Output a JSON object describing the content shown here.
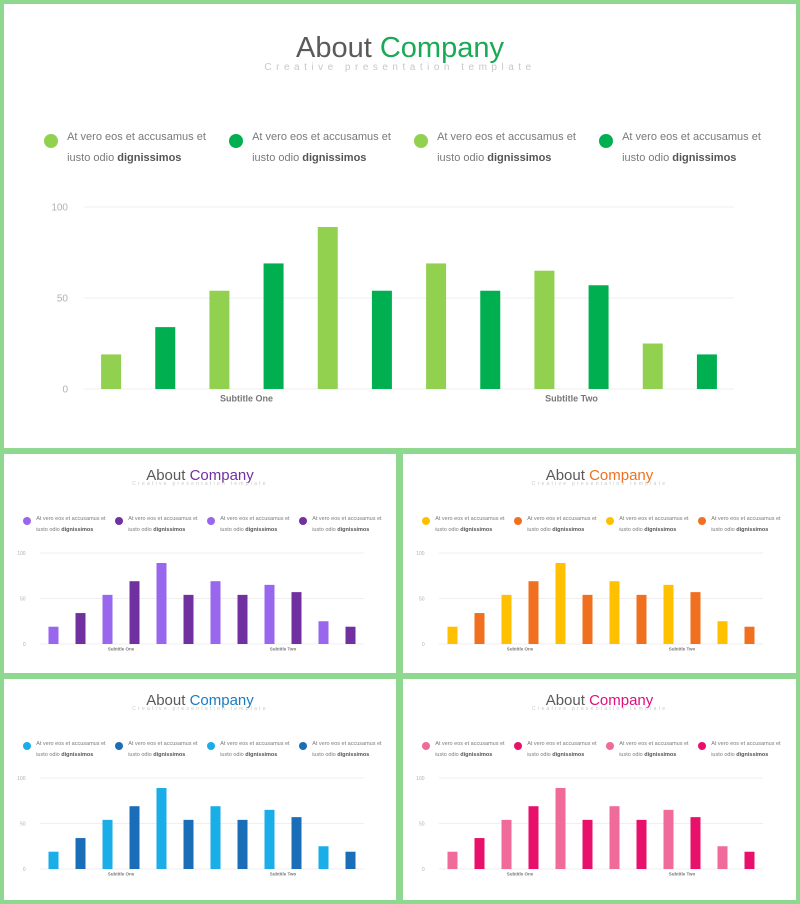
{
  "slides": [
    {
      "id": "main",
      "title_plain": "About ",
      "title_accent": "Company",
      "subtitle": "Creative presentation template",
      "accent_color": "#1aaa55",
      "colors": [
        "#92d050",
        "#00b050"
      ],
      "legend": [
        {
          "line1": "At vero eos et accusamus et",
          "line2_plain": "iusto odio ",
          "line2_bold": "dignissimos",
          "color": "#92d050"
        },
        {
          "line1": "At vero eos et accusamus et",
          "line2_plain": "iusto odio ",
          "line2_bold": "dignissimos",
          "color": "#00b050"
        },
        {
          "line1": "At vero eos et accusamus et",
          "line2_plain": "iusto odio ",
          "line2_bold": "dignissimos",
          "color": "#92d050"
        },
        {
          "line1": "At vero eos et accusamus et",
          "line2_plain": "iusto odio ",
          "line2_bold": "dignissimos",
          "color": "#00b050"
        }
      ]
    },
    {
      "id": "purple",
      "title_plain": "About ",
      "title_accent": "Company",
      "subtitle": "Creative presentation template",
      "accent_color": "#7030a0",
      "colors": [
        "#9966ee",
        "#7030a0"
      ],
      "legend": [
        {
          "line1": "At vero eos et accusamus et",
          "line2_plain": "iusto odio ",
          "line2_bold": "dignissimos",
          "color": "#9966ee"
        },
        {
          "line1": "At vero eos et accusamus et",
          "line2_plain": "iusto odio ",
          "line2_bold": "dignissimos",
          "color": "#7030a0"
        },
        {
          "line1": "At vero eos et accusamus et",
          "line2_plain": "iusto odio ",
          "line2_bold": "dignissimos",
          "color": "#9966ee"
        },
        {
          "line1": "At vero eos et accusamus et",
          "line2_plain": "iusto odio ",
          "line2_bold": "dignissimos",
          "color": "#7030a0"
        }
      ]
    },
    {
      "id": "orange",
      "title_plain": "About ",
      "title_accent": "Company",
      "subtitle": "Creative presentation template",
      "accent_color": "#f07020",
      "colors": [
        "#ffc000",
        "#f07020"
      ],
      "legend": [
        {
          "line1": "At vero eos et accusamus et",
          "line2_plain": "iusto odio ",
          "line2_bold": "dignissimos",
          "color": "#ffc000"
        },
        {
          "line1": "At vero eos et accusamus et",
          "line2_plain": "iusto odio ",
          "line2_bold": "dignissimos",
          "color": "#f07020"
        },
        {
          "line1": "At vero eos et accusamus et",
          "line2_plain": "iusto odio ",
          "line2_bold": "dignissimos",
          "color": "#ffc000"
        },
        {
          "line1": "At vero eos et accusamus et",
          "line2_plain": "iusto odio ",
          "line2_bold": "dignissimos",
          "color": "#f07020"
        }
      ]
    },
    {
      "id": "blue",
      "title_plain": "About ",
      "title_accent": "Company",
      "subtitle": "Creative presentation template",
      "accent_color": "#1a7cc0",
      "colors": [
        "#1aaee8",
        "#1a6eb8"
      ],
      "legend": [
        {
          "line1": "At vero eos et accusamus et",
          "line2_plain": "iusto odio ",
          "line2_bold": "dignissimos",
          "color": "#1aaee8"
        },
        {
          "line1": "At vero eos et accusamus et",
          "line2_plain": "iusto odio ",
          "line2_bold": "dignissimos",
          "color": "#1a6eb8"
        },
        {
          "line1": "At vero eos et accusamus et",
          "line2_plain": "iusto odio ",
          "line2_bold": "dignissimos",
          "color": "#1aaee8"
        },
        {
          "line1": "At vero eos et accusamus et",
          "line2_plain": "iusto odio ",
          "line2_bold": "dignissimos",
          "color": "#1a6eb8"
        }
      ]
    },
    {
      "id": "pink",
      "title_plain": "About ",
      "title_accent": "Company",
      "subtitle": "Creative presentation template",
      "accent_color": "#e0107a",
      "colors": [
        "#f06a9a",
        "#e8106a"
      ],
      "legend": [
        {
          "line1": "At vero eos et accusamus et",
          "line2_plain": "iusto odio ",
          "line2_bold": "dignissimos",
          "color": "#f06a9a"
        },
        {
          "line1": "At vero eos et accusamus et",
          "line2_plain": "iusto odio ",
          "line2_bold": "dignissimos",
          "color": "#e8106a"
        },
        {
          "line1": "At vero eos et accusamus et",
          "line2_plain": "iusto odio ",
          "line2_bold": "dignissimos",
          "color": "#f06a9a"
        },
        {
          "line1": "At vero eos et accusamus et",
          "line2_plain": "iusto odio ",
          "line2_bold": "dignissimos",
          "color": "#e8106a"
        }
      ]
    }
  ],
  "chart_data": {
    "type": "bar",
    "values": [
      19,
      34,
      54,
      69,
      89,
      54,
      69,
      54,
      65,
      57,
      25,
      19
    ],
    "ylim": [
      0,
      100
    ],
    "yticks": [
      0,
      50,
      100
    ],
    "group_labels": [
      "Subtitle One",
      "Subtitle Two"
    ],
    "grid": true,
    "legend_position": "top"
  }
}
